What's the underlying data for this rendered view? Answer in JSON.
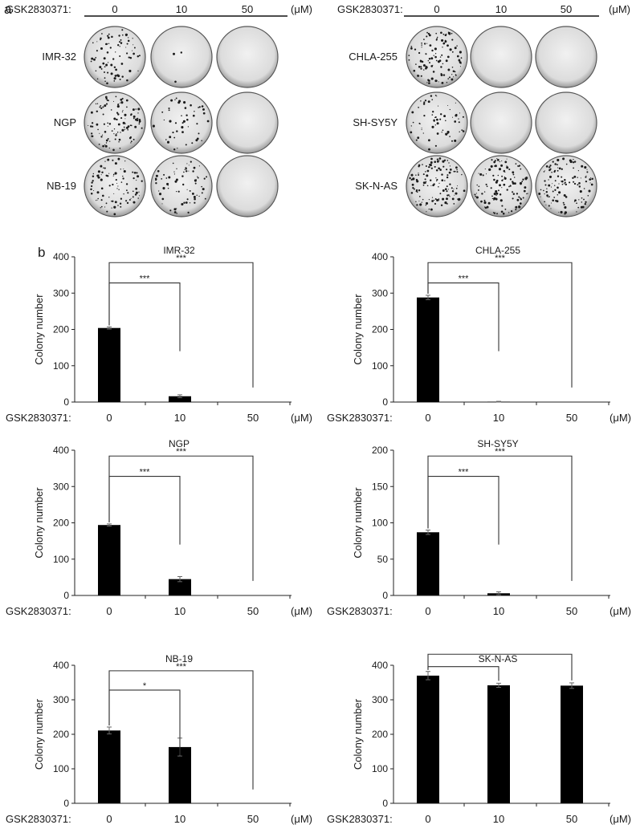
{
  "panel_a": {
    "label": "a",
    "groups": [
      {
        "treatment_label": "GSK2830371:",
        "doses": [
          "0",
          "10",
          "50"
        ],
        "unit": "(μM)",
        "rows": [
          {
            "cell_line": "IMR-32",
            "colony_density": [
              0.6,
              0.02,
              0.0
            ]
          },
          {
            "cell_line": "NGP",
            "colony_density": [
              0.85,
              0.35,
              0.0
            ]
          },
          {
            "cell_line": "NB-19",
            "colony_density": [
              0.7,
              0.55,
              0.0
            ]
          }
        ]
      },
      {
        "treatment_label": "GSK2830371:",
        "doses": [
          "0",
          "10",
          "50"
        ],
        "unit": "(μM)",
        "rows": [
          {
            "cell_line": "CHLA-255",
            "colony_density": [
              0.9,
              0.0,
              0.0
            ]
          },
          {
            "cell_line": "SH-SY5Y",
            "colony_density": [
              0.5,
              0.0,
              0.0
            ]
          },
          {
            "cell_line": "SK-N-AS",
            "colony_density": [
              1.0,
              0.95,
              0.95
            ]
          }
        ]
      }
    ]
  },
  "panel_b_label": "b",
  "chart_data": [
    {
      "type": "bar",
      "title": "IMR-32",
      "ylabel": "Colony number",
      "xlabel_prefix": "GSK2830371:",
      "unit": "(μM)",
      "categories": [
        "0",
        "10",
        "50"
      ],
      "values": [
        204,
        16,
        0
      ],
      "errors": [
        3,
        4,
        0
      ],
      "ylim": [
        0,
        400
      ],
      "yticks": [
        "0",
        "100",
        "200",
        "300",
        "400"
      ],
      "bar_color": "#000000",
      "significance": [
        {
          "from": 0,
          "to": 1,
          "label": "***"
        },
        {
          "from": 0,
          "to": 2,
          "label": "***"
        }
      ]
    },
    {
      "type": "bar",
      "title": "CHLA-255",
      "ylabel": "Colony number",
      "xlabel_prefix": "GSK2830371:",
      "unit": "(μM)",
      "categories": [
        "0",
        "10",
        "50"
      ],
      "values": [
        288,
        1,
        0
      ],
      "errors": [
        6,
        1,
        0
      ],
      "ylim": [
        0,
        400
      ],
      "yticks": [
        "0",
        "100",
        "200",
        "300",
        "400"
      ],
      "bar_color": "#000000",
      "significance": [
        {
          "from": 0,
          "to": 1,
          "label": "***"
        },
        {
          "from": 0,
          "to": 2,
          "label": "***"
        }
      ]
    },
    {
      "type": "bar",
      "title": "NGP",
      "ylabel": "Colony number",
      "xlabel_prefix": "GSK2830371:",
      "unit": "(μM)",
      "categories": [
        "0",
        "10",
        "50"
      ],
      "values": [
        194,
        45,
        0
      ],
      "errors": [
        3,
        7,
        0
      ],
      "ylim": [
        0,
        400
      ],
      "yticks": [
        "0",
        "100",
        "200",
        "300",
        "400"
      ],
      "bar_color": "#000000",
      "significance": [
        {
          "from": 0,
          "to": 1,
          "label": "***"
        },
        {
          "from": 0,
          "to": 2,
          "label": "***"
        }
      ]
    },
    {
      "type": "bar",
      "title": "SH-SY5Y",
      "ylabel": "Colony number",
      "xlabel_prefix": "GSK2830371:",
      "unit": "(μM)",
      "categories": [
        "0",
        "10",
        "50"
      ],
      "values": [
        87,
        3,
        0
      ],
      "errors": [
        3,
        2,
        0
      ],
      "ylim": [
        0,
        200
      ],
      "yticks": [
        "0",
        "50",
        "100",
        "150",
        "200"
      ],
      "bar_color": "#000000",
      "significance": [
        {
          "from": 0,
          "to": 1,
          "label": "***"
        },
        {
          "from": 0,
          "to": 2,
          "label": "***"
        }
      ]
    },
    {
      "type": "bar",
      "title": "NB-19",
      "ylabel": "Colony number",
      "xlabel_prefix": "GSK2830371:",
      "unit": "(μM)",
      "categories": [
        "0",
        "10",
        "50"
      ],
      "values": [
        211,
        163,
        0
      ],
      "errors": [
        10,
        26,
        0
      ],
      "ylim": [
        0,
        400
      ],
      "yticks": [
        "0",
        "100",
        "200",
        "300",
        "400"
      ],
      "bar_color": "#000000",
      "significance": [
        {
          "from": 0,
          "to": 1,
          "label": "*"
        },
        {
          "from": 0,
          "to": 2,
          "label": "***"
        }
      ]
    },
    {
      "type": "bar",
      "title": "SK-N-AS",
      "ylabel": "Colony number",
      "xlabel_prefix": "GSK2830371:",
      "unit": "(μM)",
      "categories": [
        "0",
        "10",
        "50"
      ],
      "values": [
        370,
        342,
        341
      ],
      "errors": [
        12,
        6,
        8
      ],
      "ylim": [
        0,
        400
      ],
      "yticks": [
        "0",
        "100",
        "200",
        "300",
        "400"
      ],
      "bar_color": "#000000",
      "significance": [
        {
          "from": 0,
          "to": 1,
          "label": ""
        },
        {
          "from": 0,
          "to": 2,
          "label": ""
        }
      ]
    }
  ]
}
